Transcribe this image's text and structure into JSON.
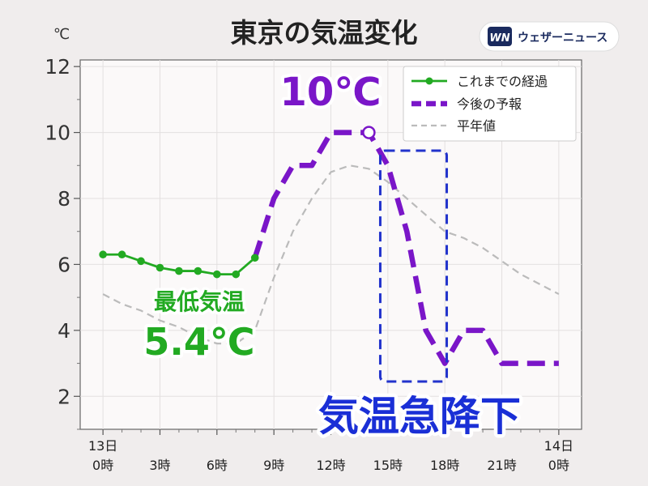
{
  "chart_data": {
    "type": "line",
    "title": "東京の気温変化",
    "ylabel": "℃",
    "ylim": [
      1,
      12.2
    ],
    "yticks": [
      2,
      4,
      6,
      8,
      10,
      12
    ],
    "xlim": [
      -1.2,
      25.2
    ],
    "xticks": [
      {
        "x": 0,
        "line1": "13日",
        "line2": "0時"
      },
      {
        "x": 3,
        "line1": "",
        "line2": "3時"
      },
      {
        "x": 6,
        "line1": "",
        "line2": "6時"
      },
      {
        "x": 9,
        "line1": "",
        "line2": "9時"
      },
      {
        "x": 12,
        "line1": "",
        "line2": "12時"
      },
      {
        "x": 15,
        "line1": "",
        "line2": "15時"
      },
      {
        "x": 18,
        "line1": "",
        "line2": "18時"
      },
      {
        "x": 21,
        "line1": "",
        "line2": "21時"
      },
      {
        "x": 24,
        "line1": "14日",
        "line2": "0時"
      }
    ],
    "grid": true,
    "legend_position": "top-right",
    "series": [
      {
        "name": "これまでの経過",
        "style": "solid-markers",
        "color": "#22aa22",
        "x": [
          0,
          1,
          2,
          3,
          4,
          5,
          6,
          7,
          8
        ],
        "y": [
          6.3,
          6.3,
          6.1,
          5.9,
          5.8,
          5.8,
          5.7,
          5.7,
          6.2
        ]
      },
      {
        "name": "今後の予報",
        "style": "dashed-bold",
        "color": "#7a16c8",
        "x": [
          8,
          9,
          10,
          11,
          12,
          13,
          14,
          15,
          16,
          17,
          18,
          19,
          20,
          21,
          22,
          23,
          24
        ],
        "y": [
          6.2,
          8,
          9,
          9,
          10,
          10,
          10,
          9,
          7,
          4,
          3,
          4,
          4,
          3,
          3,
          3,
          3
        ]
      },
      {
        "name": "平年値",
        "style": "dashed-thin",
        "color": "#bbbbbb",
        "x": [
          0,
          1,
          2,
          3,
          4,
          5,
          6,
          7,
          8,
          9,
          10,
          11,
          12,
          13,
          14,
          15,
          16,
          17,
          18,
          19,
          20,
          21,
          22,
          23,
          24
        ],
        "y": [
          5.1,
          4.8,
          4.6,
          4.3,
          4.1,
          3.8,
          3.6,
          3.6,
          4.0,
          5.6,
          7.0,
          8.0,
          8.8,
          9.0,
          8.9,
          8.5,
          8.0,
          7.5,
          7.0,
          6.8,
          6.5,
          6.1,
          5.7,
          5.4,
          5.1
        ]
      }
    ],
    "annotations": {
      "peak_label": "10℃",
      "peak_point": {
        "x": 14,
        "y": 10
      },
      "min_label_title": "最低気温",
      "min_label_value": "5.4℃",
      "drop_label": "気温急降下",
      "drop_box": {
        "x0": 14.6,
        "x1": 18.1,
        "y0": 2.45,
        "y1": 9.45
      }
    },
    "colors": {
      "forecast": "#7a16c8",
      "observed": "#22aa22",
      "normal": "#bbbbbb",
      "box": "#2233cc",
      "drop_text": "#1a2fd6"
    }
  },
  "brand": {
    "logo_text": "WN",
    "name": "ウェザーニュース"
  }
}
